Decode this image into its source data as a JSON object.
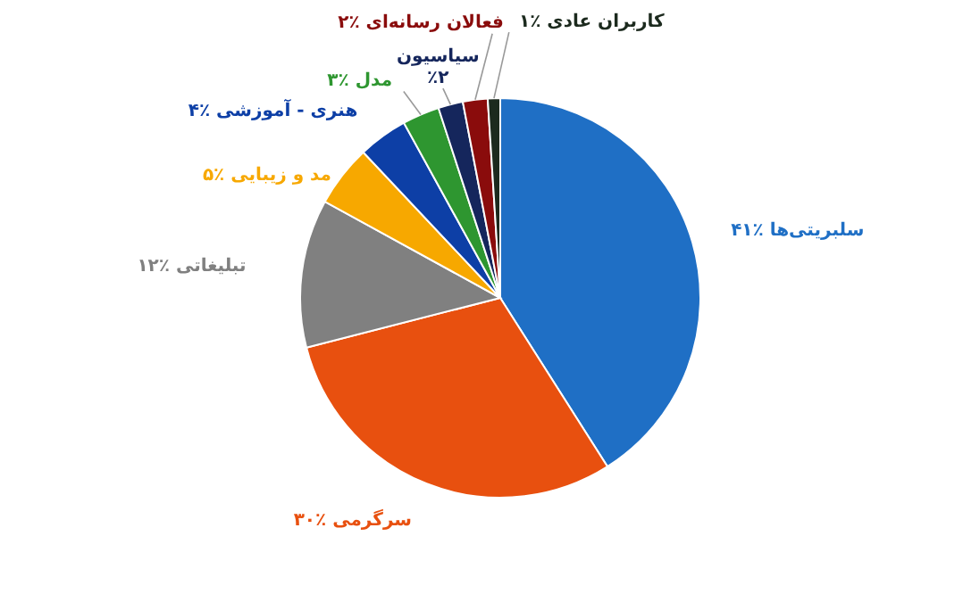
{
  "chart_data": {
    "type": "pie",
    "categories": [
      "سلبریتی‌ها",
      "سرگرمی",
      "تبلیغاتی",
      "مد و زیبایی",
      "هنری - آموزشی",
      "مدل",
      "سیاسیون",
      "فعالان رسانه‌ای",
      "کاربران عادی"
    ],
    "values": [
      41,
      30,
      12,
      5,
      4,
      3,
      2,
      2,
      1
    ],
    "value_labels": [
      "٪۴۱",
      "٪۳۰",
      "٪۱۲",
      "٪۵",
      "٪۴",
      "٪۳",
      "٪۲",
      "٪۲",
      "٪۱"
    ],
    "colors": [
      "#1f6fc5",
      "#e8500f",
      "#808080",
      "#f7a800",
      "#0d3fa6",
      "#2e9630",
      "#15265c",
      "#8a0c0c",
      "#1c2a1e"
    ]
  }
}
